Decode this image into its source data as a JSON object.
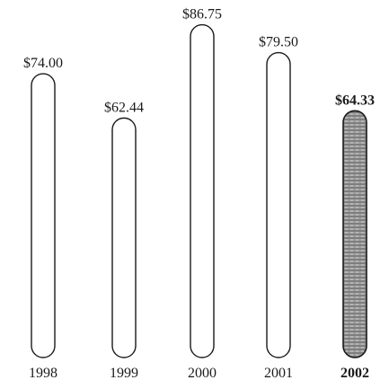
{
  "chart_data": {
    "type": "bar",
    "categories": [
      "1998",
      "1999",
      "2000",
      "2001",
      "2002"
    ],
    "values": [
      74.0,
      62.44,
      86.75,
      79.5,
      64.33
    ],
    "value_labels": [
      "$74.00",
      "$62.44",
      "$86.75",
      "$79.50",
      "$64.33"
    ],
    "highlight_index": 4,
    "title": "",
    "xlabel": "",
    "ylabel": "",
    "grid": false,
    "legend": "none",
    "colors": {
      "bar_outline": "#1a1a1a",
      "bar_fill": "#ffffff",
      "highlight_fill": "#9a9a9a",
      "text": "#1a1a1a"
    }
  }
}
